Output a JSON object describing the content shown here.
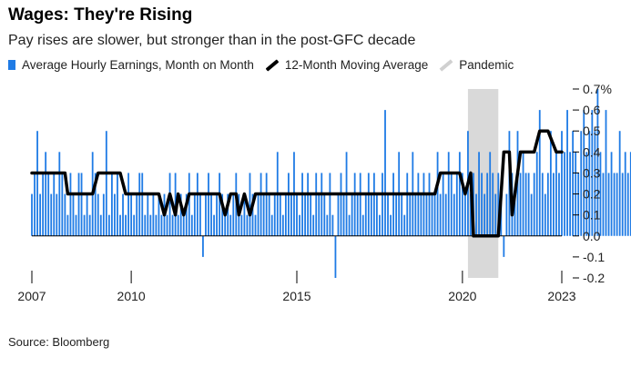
{
  "title": "Wages: They're Rising",
  "subtitle": "Pay rises are slower, but stronger than in the post-GFC decade",
  "source": "Source: Bloomberg",
  "chart_data": {
    "type": "bar",
    "legend": {
      "bars": "Average Hourly Earnings, Month on Month",
      "line": "12-Month Moving Average",
      "shade": "Pandemic"
    },
    "legend_position": "top",
    "colors": {
      "bars": "#1f7be5",
      "line": "#000000",
      "shade": "#d9d9d9"
    },
    "x_ticks": [
      "2007",
      "2010",
      "2015",
      "2020",
      "2023"
    ],
    "y_ticks": [
      "0.7%",
      "0.6",
      "0.5",
      "0.4",
      "0.3",
      "0.2",
      "0.1",
      "0.0",
      "-0.1",
      "-0.2"
    ],
    "ylim": [
      -0.2,
      0.7
    ],
    "xlim": [
      "2007-01",
      "2023-01"
    ],
    "grid": false,
    "pandemic": {
      "start": "2020-03",
      "end": "2021-02"
    },
    "monthly_change": {
      "start": "2007-01",
      "series_name": "Average Hourly Earnings, Month on Month",
      "values": [
        0.2,
        0.3,
        0.5,
        0.2,
        0.3,
        0.4,
        0.3,
        0.2,
        0.3,
        0.2,
        0.4,
        0.3,
        0.2,
        0.1,
        0.3,
        0.2,
        0.1,
        0.3,
        0.3,
        0.1,
        0.2,
        0.1,
        0.4,
        0.3,
        0.2,
        0.1,
        0.2,
        0.5,
        0.1,
        0.3,
        0.2,
        0.3,
        0.1,
        0.2,
        0.1,
        0.3,
        0.2,
        0.1,
        0.2,
        0.3,
        0.3,
        0.1,
        0.2,
        0.1,
        0.2,
        0.1,
        0.2,
        0.1,
        0.2,
        0.1,
        0.3,
        0.1,
        0.3,
        0.1,
        0.2,
        0.1,
        0.2,
        0.3,
        0.1,
        0.2,
        0.3,
        0.2,
        -0.1,
        0.2,
        0.3,
        0.2,
        0.1,
        0.2,
        0.3,
        0.2,
        0.1,
        0.2,
        0.1,
        0.2,
        0.3,
        0.2,
        0.1,
        0.2,
        0.1,
        0.3,
        0.2,
        0.1,
        0.2,
        0.3,
        0.2,
        0.3,
        0.2,
        0.1,
        0.2,
        0.4,
        0.2,
        0.1,
        0.2,
        0.3,
        0.2,
        0.4,
        0.2,
        0.1,
        0.3,
        0.2,
        0.3,
        0.2,
        0.1,
        0.3,
        0.2,
        0.3,
        0.2,
        0.1,
        0.3,
        0.1,
        -0.2,
        0.2,
        0.3,
        0.2,
        0.4,
        0.1,
        0.2,
        0.3,
        0.2,
        0.3,
        0.1,
        0.2,
        0.3,
        0.2,
        0.3,
        0.2,
        0.1,
        0.3,
        0.6,
        0.2,
        0.1,
        0.3,
        0.2,
        0.4,
        0.2,
        0.1,
        0.3,
        0.2,
        0.4,
        0.2,
        0.3,
        0.2,
        0.3,
        0.2,
        0.3,
        0.2,
        0.2,
        0.4,
        0.2,
        0.3,
        0.2,
        0.4,
        0.3,
        0.2,
        0.3,
        0.4,
        0.3,
        0.2,
        0.5,
        0.2,
        0.3,
        0.2,
        0.4,
        0.3,
        0.2,
        0.3,
        0.4,
        0.3,
        0.2,
        0.3,
        0.2,
        -0.1,
        0.2,
        0.5,
        0.3,
        0.2,
        0.5,
        0.3,
        0.4,
        0.3,
        0.3,
        0.2,
        0.3,
        0.4,
        0.6,
        0.3,
        0.2,
        0.3,
        0.5,
        0.3,
        0.4,
        0.3,
        0.5,
        0.4,
        0.6,
        0.4,
        0.5,
        0.4,
        0.3,
        0.5,
        0.6,
        0.4,
        0.5,
        0.6,
        0.5,
        0.7,
        0.4,
        0.3,
        0.6,
        0.3,
        0.4,
        0.3,
        0.3,
        0.5,
        0.3,
        0.4,
        0.3,
        0.4,
        0.3,
        0.3,
        0.4,
        0.3
      ]
    },
    "moving_average": {
      "series_name": "12-Month Moving Average",
      "points": [
        [
          "2007-01",
          0.3
        ],
        [
          "2008-01",
          0.3
        ],
        [
          "2008-02",
          0.2
        ],
        [
          "2008-11",
          0.2
        ],
        [
          "2009-01",
          0.3
        ],
        [
          "2009-09",
          0.3
        ],
        [
          "2009-11",
          0.2
        ],
        [
          "2010-11",
          0.2
        ],
        [
          "2011-01",
          0.1
        ],
        [
          "2011-03",
          0.2
        ],
        [
          "2011-05",
          0.1
        ],
        [
          "2011-06",
          0.2
        ],
        [
          "2011-08",
          0.1
        ],
        [
          "2011-10",
          0.2
        ],
        [
          "2012-09",
          0.2
        ],
        [
          "2012-11",
          0.1
        ],
        [
          "2013-01",
          0.2
        ],
        [
          "2013-03",
          0.2
        ],
        [
          "2013-04",
          0.1
        ],
        [
          "2013-06",
          0.2
        ],
        [
          "2013-08",
          0.1
        ],
        [
          "2013-10",
          0.2
        ],
        [
          "2019-03",
          0.2
        ],
        [
          "2019-05",
          0.3
        ],
        [
          "2019-12",
          0.3
        ],
        [
          "2020-02",
          0.2
        ],
        [
          "2020-04",
          0.3
        ],
        [
          "2020-05",
          0.0
        ],
        [
          "2021-02",
          0.0
        ],
        [
          "2021-04",
          0.4
        ],
        [
          "2021-06",
          0.4
        ],
        [
          "2021-07",
          0.1
        ],
        [
          "2021-10",
          0.4
        ],
        [
          "2022-03",
          0.4
        ],
        [
          "2022-05",
          0.5
        ],
        [
          "2022-08",
          0.5
        ],
        [
          "2022-11",
          0.4
        ],
        [
          "2023-01",
          0.4
        ]
      ]
    }
  }
}
